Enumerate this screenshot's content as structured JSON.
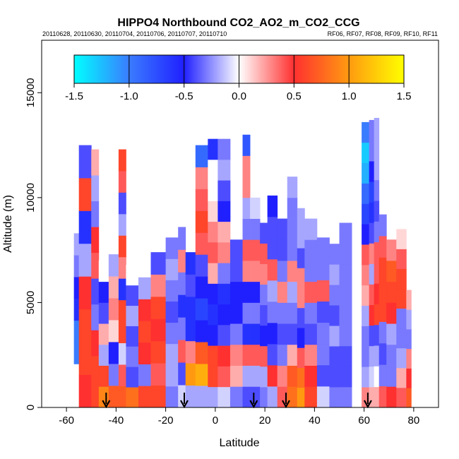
{
  "chart_data": {
    "type": "heatmap",
    "title": "HIPPO4 Northbound CO2_AO2_m_CO2_CCG",
    "subtitle_left": "20110628, 20110630, 20110704, 20110706, 20110707, 20110710",
    "subtitle_right": "RF06, RF07, RF08, RF09, RF10, RF11",
    "xlabel": "Latitude",
    "ylabel": "Altitude (m)",
    "xlim": [
      -70,
      90
    ],
    "ylim": [
      0,
      17500
    ],
    "xticks": [
      -60,
      -40,
      -20,
      0,
      20,
      40,
      60,
      80
    ],
    "yticks": [
      0,
      5000,
      10000,
      15000
    ],
    "colorbar": {
      "range": [
        -1.5,
        1.5
      ],
      "ticks": [
        -1.5,
        -1.0,
        -0.5,
        0.0,
        0.5,
        1.0,
        1.5
      ],
      "tick_labels": [
        "-1.5",
        "-1.0",
        "-0.5",
        "0.0",
        "0.5",
        "1.0",
        "1.5"
      ],
      "colors": [
        "#00ffff",
        "#3a7cff",
        "#2020ff",
        "#ffffff",
        "#ff3030",
        "#ff9a10",
        "#ffff00"
      ],
      "placement": "top-inside"
    },
    "flight_markers_latitude": [
      -44,
      -12.5,
      15.5,
      28.5,
      61.5
    ],
    "columns": [
      {
        "lat": [
          -57,
          -55
        ],
        "top": 8300,
        "values": [
          0,
          0,
          -1,
          -1,
          -0.6,
          -0.5,
          -0.3,
          -0.2
        ]
      },
      {
        "lat": [
          -55,
          -50
        ],
        "top": 12500,
        "values": [
          0.5,
          0.6,
          0.6,
          0.5,
          -0.2,
          -0.6,
          0.6,
          -0.4
        ]
      },
      {
        "lat": [
          -50,
          -47
        ],
        "top": 12300,
        "values": [
          0.6,
          0.6,
          0.5,
          -0.3,
          -0.4,
          0.4,
          0.5,
          -0.3,
          -0.2,
          0.2
        ]
      },
      {
        "lat": [
          -47,
          -43
        ],
        "top": 7000,
        "values": [
          0.9,
          0.6,
          -0.2,
          0.2,
          -0.4,
          -0.5,
          0.0
        ]
      },
      {
        "lat": [
          -43,
          -39
        ],
        "top": 7300,
        "values": [
          0.7,
          -0.3,
          -0.5,
          0.1,
          0.3,
          0.2,
          -0.2
        ]
      },
      {
        "lat": [
          -39,
          -36
        ],
        "top": 12300,
        "values": [
          0.7,
          0.4,
          -0.1,
          0.6,
          0.6,
          -0.6,
          0.3,
          0.6,
          -0.2,
          -0.4,
          0.4,
          0.6
        ]
      },
      {
        "lat": [
          -36,
          -31
        ],
        "top": 6800,
        "values": [
          0.8,
          -0.4,
          -0.3,
          -0.4,
          -0.2,
          -0.4,
          0.0
        ]
      },
      {
        "lat": [
          -31,
          -26
        ],
        "top": 6200,
        "values": [
          0.6,
          -0.3,
          0.5,
          0.6,
          0.5,
          -0.2
        ]
      },
      {
        "lat": [
          -26,
          -20
        ],
        "top": 7400,
        "values": [
          0.6,
          0.4,
          0.6,
          0.5,
          0.6,
          0.3,
          -0.4
        ]
      },
      {
        "lat": [
          -20,
          -15
        ],
        "top": 8100,
        "values": [
          -0.3,
          -0.2,
          -0.2,
          -0.3,
          -0.4,
          -0.3,
          -0.2,
          -0.3
        ]
      },
      {
        "lat": [
          -15,
          -12
        ],
        "top": 8600,
        "values": [
          -0.1,
          -0.4,
          0.4,
          -0.3,
          -0.6,
          -0.3,
          0.3,
          -0.3
        ]
      },
      {
        "lat": [
          -12,
          -8
        ],
        "top": 7400,
        "values": [
          -0.2,
          1.0,
          0.3,
          -0.6,
          -0.6,
          -0.4,
          -0.6
        ]
      },
      {
        "lat": [
          -8,
          -3
        ],
        "top": 12500,
        "values": [
          -0.2,
          1.1,
          0.7,
          -0.5,
          -0.7,
          -0.5,
          -0.4,
          0.4,
          0.6,
          0.4,
          0.3,
          -0.9
        ]
      },
      {
        "lat": [
          -3,
          1
        ],
        "top": 12800,
        "values": [
          -0.2,
          0.6,
          0.6,
          -0.5,
          -0.6,
          -0.5,
          0.2,
          0.4,
          0.3,
          0.1,
          0.0,
          0.0,
          -0.6
        ]
      },
      {
        "lat": [
          1,
          6
        ],
        "top": 12800,
        "values": [
          -0.1,
          0.4,
          0.5,
          -0.4,
          -0.5,
          -0.6,
          -0.3,
          0.3,
          0.2,
          -0.5,
          -0.4,
          -0.2,
          -0.3
        ]
      },
      {
        "lat": [
          6,
          11
        ],
        "top": 8000,
        "values": [
          -0.3,
          0.2,
          0.3,
          -0.3,
          -0.5,
          -0.5,
          -0.4,
          -0.4
        ]
      },
      {
        "lat": [
          11,
          14
        ],
        "top": 13000,
        "values": [
          -0.4,
          -0.2,
          0.4,
          -0.6,
          -0.3,
          -0.5,
          0.3,
          0.4,
          -0.3,
          -0.2,
          0.3,
          0.3,
          -0.8
        ]
      },
      {
        "lat": [
          14,
          18
        ],
        "top": 10000,
        "values": [
          -0.4,
          -0.2,
          0.4,
          -0.6,
          -0.3,
          -0.5,
          0.3,
          0.4,
          -0.3,
          -0.1
        ]
      },
      {
        "lat": [
          18,
          21
        ],
        "top": 8800,
        "values": [
          -0.3,
          -0.2,
          0.4,
          -0.5,
          -0.4,
          -0.3,
          0.3,
          0.4,
          -0.4
        ]
      },
      {
        "lat": [
          21,
          25
        ],
        "top": 10100,
        "values": [
          -0.2,
          0.5,
          -0.4,
          -0.5,
          -0.3,
          -0.2,
          0.4,
          -0.4,
          -0.4,
          -0.5
        ]
      },
      {
        "lat": [
          25,
          29
        ],
        "top": 9000,
        "values": [
          0.4,
          0.3,
          -0.3,
          -0.4,
          -0.3,
          0.3,
          -0.3,
          -0.4,
          -0.4
        ]
      },
      {
        "lat": [
          29,
          33
        ],
        "top": 11000,
        "values": [
          0.8,
          0.7,
          0.2,
          -0.4,
          -0.3,
          -0.2,
          0.3,
          -0.3,
          -0.3,
          -0.3,
          -0.2
        ]
      },
      {
        "lat": [
          33,
          36
        ],
        "top": 9500,
        "values": [
          1.0,
          0.8,
          0.4,
          -0.5,
          -0.4,
          0.3,
          0.3,
          -0.4,
          -0.2,
          -0.2
        ]
      },
      {
        "lat": [
          36,
          41
        ],
        "top": 9000,
        "values": [
          0.6,
          0.5,
          0.3,
          -0.4,
          -0.3,
          0.4,
          -0.3,
          -0.3,
          -0.2
        ]
      },
      {
        "lat": [
          41,
          46
        ],
        "top": 8100,
        "values": [
          -0.1,
          -0.4,
          -0.3,
          -0.3,
          -0.4,
          0.4,
          -0.3,
          -0.3
        ]
      },
      {
        "lat": [
          46,
          50
        ],
        "top": 7800,
        "values": [
          -0.3,
          -0.4,
          -0.4,
          -0.2,
          -0.4,
          -0.3,
          -0.2,
          -0.3
        ]
      },
      {
        "lat": [
          50,
          55
        ],
        "top": 8800,
        "values": [
          -0.3,
          -0.4,
          -0.4,
          -0.3,
          -0.3,
          -0.3,
          -0.3,
          -0.3,
          -0.3
        ]
      },
      {
        "lat": [
          59,
          62
        ],
        "top": 13600,
        "values": [
          0.3,
          -0.2,
          -0.3,
          -0.3,
          -0.2,
          0.2,
          0.3,
          0.4,
          -0.5,
          -0.7,
          -0.9,
          -1.2,
          -1.3,
          -1.0
        ]
      },
      {
        "lat": [
          62,
          64
        ],
        "top": 13700,
        "values": [
          0.2,
          -0.1,
          -0.2,
          -0.4,
          0.5,
          0.4,
          -0.2,
          0.3,
          -0.4,
          -0.6,
          -0.7,
          -0.5,
          -0.3,
          -0.3
        ]
      },
      {
        "lat": [
          64,
          66
        ],
        "top": 13800,
        "values": [
          0.2,
          0.0,
          -0.2,
          -0.4,
          0.6,
          0.5,
          0.4,
          0.4,
          -0.3,
          -0.4,
          -0.3,
          -0.2,
          -0.2,
          -0.2
        ]
      },
      {
        "lat": [
          66,
          69
        ],
        "top": 9200,
        "values": [
          0.4,
          -0.3,
          -0.4,
          -0.3,
          0.6,
          0.6,
          0.6,
          0.4,
          -0.3
        ]
      },
      {
        "lat": [
          69,
          73
        ],
        "top": 8000,
        "values": [
          0.5,
          -0.3,
          -0.3,
          -0.2,
          0.5,
          0.6,
          0.7,
          0.3
        ]
      },
      {
        "lat": [
          73,
          77
        ],
        "top": 8500,
        "values": [
          0.4,
          0.2,
          -0.2,
          -0.3,
          -0.3,
          0.6,
          0.6,
          0.4,
          0.1
        ]
      },
      {
        "lat": [
          77,
          79
        ],
        "top": 5600,
        "values": [
          0.7,
          0.5,
          0.3,
          -0.3,
          -0.2,
          0.2
        ]
      }
    ]
  }
}
